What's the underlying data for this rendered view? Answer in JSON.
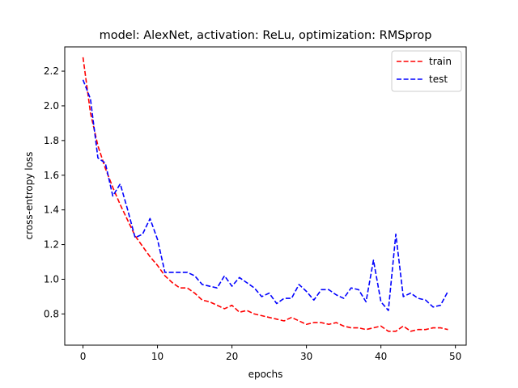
{
  "chart_data": {
    "type": "line",
    "title": "model: AlexNet, activation: ReLu, optimization: RMSprop",
    "xlabel": "epochs",
    "ylabel": "cross-entropy loss",
    "xlim": [
      -2.45,
      51.45
    ],
    "ylim": [
      0.62,
      2.34
    ],
    "xticks": [
      0,
      10,
      20,
      30,
      40,
      50
    ],
    "yticks": [
      0.8,
      1.0,
      1.2,
      1.4,
      1.6,
      1.8,
      2.0,
      2.2
    ],
    "ytick_labels": [
      "0.8",
      "1.0",
      "1.2",
      "1.4",
      "1.6",
      "1.8",
      "2.0",
      "2.2"
    ],
    "grid": false,
    "legend_position": "top-right",
    "x": [
      0,
      1,
      2,
      3,
      4,
      5,
      6,
      7,
      8,
      9,
      10,
      11,
      12,
      13,
      14,
      15,
      16,
      17,
      18,
      19,
      20,
      21,
      22,
      23,
      24,
      25,
      26,
      27,
      28,
      29,
      30,
      31,
      32,
      33,
      34,
      35,
      36,
      37,
      38,
      39,
      40,
      41,
      42,
      43,
      44,
      45,
      46,
      47,
      48,
      49
    ],
    "series": [
      {
        "name": "train",
        "color": "#ff0000",
        "dash": "dashed",
        "values": [
          2.28,
          1.96,
          1.77,
          1.64,
          1.53,
          1.43,
          1.34,
          1.25,
          1.19,
          1.13,
          1.08,
          1.02,
          0.98,
          0.95,
          0.95,
          0.92,
          0.88,
          0.87,
          0.85,
          0.83,
          0.85,
          0.81,
          0.82,
          0.8,
          0.79,
          0.78,
          0.77,
          0.76,
          0.78,
          0.76,
          0.74,
          0.75,
          0.75,
          0.74,
          0.75,
          0.73,
          0.72,
          0.72,
          0.71,
          0.72,
          0.73,
          0.7,
          0.7,
          0.73,
          0.7,
          0.71,
          0.71,
          0.72,
          0.72,
          0.71
        ]
      },
      {
        "name": "test",
        "color": "#0000ff",
        "dash": "dashed",
        "values": [
          2.15,
          2.04,
          1.7,
          1.67,
          1.48,
          1.55,
          1.4,
          1.24,
          1.26,
          1.35,
          1.23,
          1.04,
          1.04,
          1.04,
          1.04,
          1.02,
          0.97,
          0.96,
          0.95,
          1.02,
          0.96,
          1.01,
          0.98,
          0.95,
          0.9,
          0.92,
          0.86,
          0.89,
          0.89,
          0.97,
          0.93,
          0.88,
          0.94,
          0.94,
          0.91,
          0.89,
          0.95,
          0.94,
          0.87,
          1.11,
          0.87,
          0.82,
          1.26,
          0.9,
          0.92,
          0.89,
          0.88,
          0.84,
          0.85,
          0.93
        ]
      }
    ]
  }
}
